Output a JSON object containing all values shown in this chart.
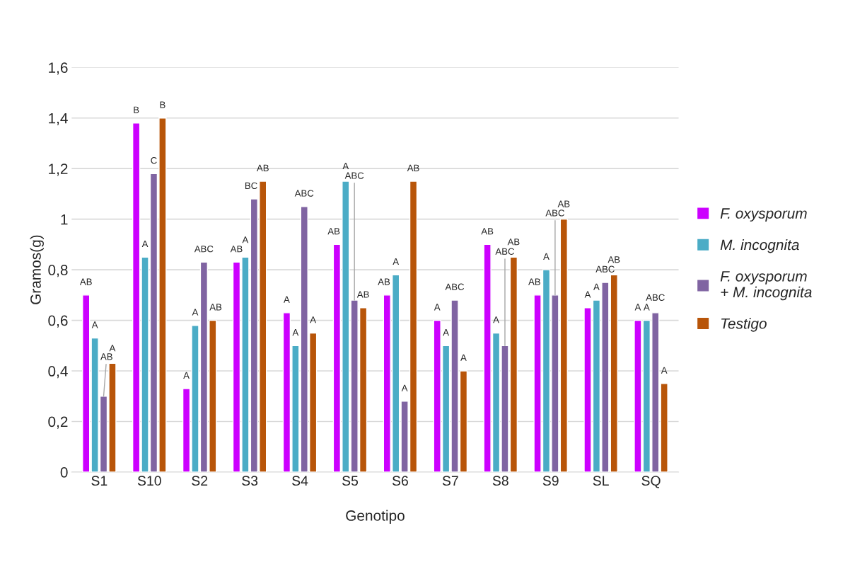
{
  "chart_data": {
    "type": "bar",
    "xlabel": "Genotipo",
    "ylabel": "Gramos(g)",
    "categories": [
      "S1",
      "S10",
      "S2",
      "S3",
      "S4",
      "S5",
      "S6",
      "S7",
      "S8",
      "S9",
      "SL",
      "SQ"
    ],
    "ylim": [
      0,
      1.6
    ],
    "yticks": [
      0,
      {
        "value": 0.2,
        "label": "0,2"
      },
      {
        "value": 0.4,
        "label": "0,4"
      },
      {
        "value": 0.6,
        "label": "0,6"
      },
      {
        "value": 0.8,
        "label": "0,8"
      },
      1,
      {
        "value": 1.2,
        "label": "1,2"
      },
      {
        "value": 1.4,
        "label": "1,4"
      },
      {
        "value": 1.6,
        "label": "1,6"
      }
    ],
    "grid": "y",
    "legend": "right",
    "series": [
      {
        "name": "F. oxysporum",
        "color": "#cc00ff",
        "values": [
          0.7,
          1.38,
          0.33,
          0.83,
          0.63,
          0.9,
          0.7,
          0.6,
          0.9,
          0.7,
          0.65,
          0.6
        ],
        "value_labels": [
          "AB",
          "B",
          "A",
          "AB",
          "A",
          "AB",
          "AB",
          "A",
          "AB",
          "AB",
          "A",
          "A"
        ]
      },
      {
        "name": "M. incognita",
        "color": "#4bacc6",
        "values": [
          0.53,
          0.85,
          0.58,
          0.85,
          0.5,
          1.15,
          0.78,
          0.5,
          0.55,
          0.8,
          0.68,
          0.6
        ],
        "value_labels": [
          "A",
          "A",
          "A",
          "A",
          "A",
          "A",
          "A",
          "A",
          "A",
          "A",
          "A",
          "A"
        ]
      },
      {
        "name": "F. oxysporum\n+ M. incognita",
        "color": "#8064a2",
        "values": [
          0.3,
          1.18,
          0.83,
          1.08,
          1.05,
          0.68,
          0.28,
          0.68,
          0.5,
          0.7,
          0.75,
          0.63
        ],
        "value_labels": [
          "AB",
          "C",
          "ABC",
          "BC",
          "ABC",
          "ABC",
          "A",
          "ABC",
          "ABC",
          "ABC",
          "ABC",
          "ABC"
        ]
      },
      {
        "name": "Testigo",
        "color": "#b85509",
        "values": [
          0.43,
          1.4,
          0.6,
          1.15,
          0.55,
          0.65,
          1.15,
          0.4,
          0.85,
          1.0,
          0.78,
          0.35
        ],
        "value_labels": [
          "A",
          "B",
          "AB",
          "AB",
          "A",
          "AB",
          "AB",
          "A",
          "AB",
          "AB",
          "AB",
          "A"
        ]
      }
    ]
  }
}
